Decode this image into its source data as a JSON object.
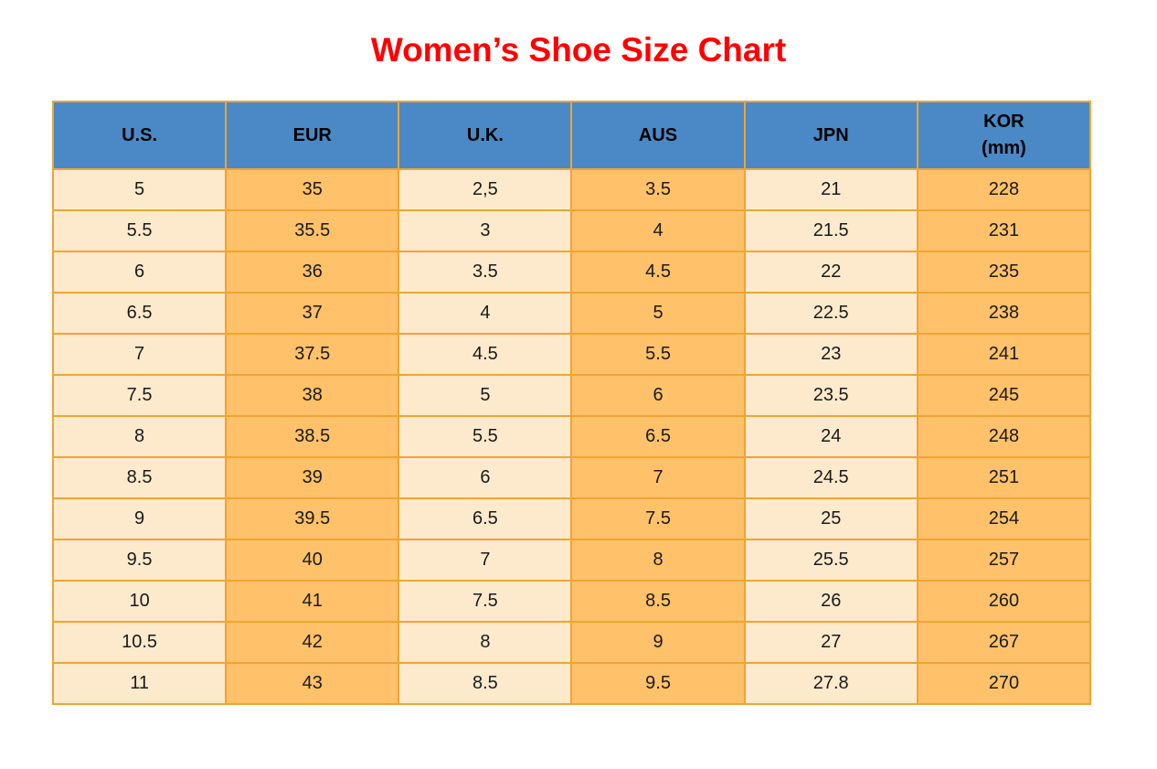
{
  "title": {
    "text": "Women’s Shoe Size Chart",
    "color": "#ff0000"
  },
  "colors": {
    "header_bg": "#4a89c6",
    "header_text": "#000000",
    "cell_cream": "#fdeacd",
    "cell_orange": "#ffc169",
    "grid_border": "#f0a432",
    "cell_text": "#1a1a1a",
    "title_color": "#ff0000",
    "page_bg": "#ffffff"
  },
  "table": {
    "headers": [
      {
        "label": "U.S."
      },
      {
        "label": "EUR"
      },
      {
        "label": "U.K."
      },
      {
        "label": "AUS"
      },
      {
        "label": "JPN"
      },
      {
        "label": "KOR",
        "sublabel": "(mm)"
      }
    ],
    "column_styles": [
      "cream",
      "orange",
      "cream",
      "orange",
      "cream",
      "orange"
    ]
  },
  "chart_data": {
    "type": "table",
    "title": "Women’s Shoe Size Chart",
    "columns": [
      "U.S.",
      "EUR",
      "U.K.",
      "AUS",
      "JPN",
      "KOR (mm)"
    ],
    "rows": [
      [
        "5",
        "35",
        "2,5",
        "3.5",
        "21",
        "228"
      ],
      [
        "5.5",
        "35.5",
        "3",
        "4",
        "21.5",
        "231"
      ],
      [
        "6",
        "36",
        "3.5",
        "4.5",
        "22",
        "235"
      ],
      [
        "6.5",
        "37",
        "4",
        "5",
        "22.5",
        "238"
      ],
      [
        "7",
        "37.5",
        "4.5",
        "5.5",
        "23",
        "241"
      ],
      [
        "7.5",
        "38",
        "5",
        "6",
        "23.5",
        "245"
      ],
      [
        "8",
        "38.5",
        "5.5",
        "6.5",
        "24",
        "248"
      ],
      [
        "8.5",
        "39",
        "6",
        "7",
        "24.5",
        "251"
      ],
      [
        "9",
        "39.5",
        "6.5",
        "7.5",
        "25",
        "254"
      ],
      [
        "9.5",
        "40",
        "7",
        "8",
        "25.5",
        "257"
      ],
      [
        "10",
        "41",
        "7.5",
        "8.5",
        "26",
        "260"
      ],
      [
        "10.5",
        "42",
        "8",
        "9",
        "27",
        "267"
      ],
      [
        "11",
        "43",
        "8.5",
        "9.5",
        "27.8",
        "270"
      ]
    ]
  }
}
